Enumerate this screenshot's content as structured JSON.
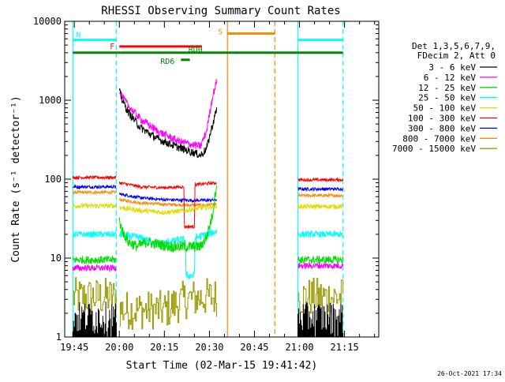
{
  "chart_data": {
    "type": "line",
    "title": "RHESSI Observing Summary Count Rates",
    "xlabel": "Start Time (02-Mar-15 19:41:42)",
    "ylabel": "Count Rate (s⁻¹ detector⁻¹)",
    "yscale": "log",
    "ylim": [
      1,
      10000
    ],
    "xlim_minutes": [
      -3.2,
      101.4
    ],
    "x_units": "minutes after 19:45",
    "x_tick_labels": [
      {
        "t": 0,
        "label": "19:45"
      },
      {
        "t": 15,
        "label": "20:00"
      },
      {
        "t": 30,
        "label": "20:15"
      },
      {
        "t": 45,
        "label": "20:30"
      },
      {
        "t": 60,
        "label": "20:45"
      },
      {
        "t": 75,
        "label": "21:00"
      },
      {
        "t": 90,
        "label": "21:15"
      }
    ],
    "y_tick_labels": [
      {
        "v": 1,
        "label": "1"
      },
      {
        "v": 10,
        "label": "10"
      },
      {
        "v": 100,
        "label": "100"
      },
      {
        "v": 1000,
        "label": "1000"
      },
      {
        "v": 10000,
        "label": "10000"
      }
    ],
    "legend_header": [
      "Det 1,3,5,6,7,9,",
      "FDecim 2, Att 0"
    ],
    "legend_position": "top-right outside plot",
    "series": [
      {
        "name": "3 - 6 keV",
        "color": "#000000",
        "segments": [
          {
            "t": [
              -0.5,
              14
            ],
            "v": [
              1,
              1
            ],
            "noise": 0.0
          },
          {
            "t": [
              15,
              16,
              18,
              22,
              28,
              35,
              40,
              42,
              44,
              46,
              47.5
            ],
            "v": [
              1300,
              1000,
              700,
              450,
              320,
              250,
              215,
              200,
              240,
              480,
              800
            ],
            "noise": 0.05
          },
          {
            "t": [
              74.5,
              89.5
            ],
            "v": [
              1,
              1
            ],
            "noise": 0.0
          }
        ]
      },
      {
        "name": "6 - 12 keV",
        "color": "#ff00ff",
        "segments": [
          {
            "t": [
              -0.5,
              14
            ],
            "v": [
              7.5,
              7.5
            ],
            "noise": 0.04
          },
          {
            "t": [
              15,
              16,
              18,
              22,
              28,
              35,
              40,
              42,
              44,
              46,
              47.5
            ],
            "v": [
              1350,
              1100,
              850,
              580,
              400,
              300,
              270,
              260,
              400,
              1100,
              1800
            ],
            "noise": 0.05
          },
          {
            "t": [
              74.5,
              89.5
            ],
            "v": [
              8,
              8
            ],
            "noise": 0.04
          }
        ]
      },
      {
        "name": "12 - 25 keV",
        "color": "#00dd00",
        "segments": [
          {
            "t": [
              -0.5,
              14
            ],
            "v": [
              9.5,
              9.5
            ],
            "noise": 0.05
          },
          {
            "t": [
              15,
              16,
              18,
              21,
              24,
              28,
              32,
              36,
              40,
              42,
              44,
              46,
              47.5
            ],
            "v": [
              30,
              22,
              16,
              14,
              16,
              15,
              14,
              14,
              14,
              14,
              18,
              35,
              95
            ],
            "noise": 0.07
          },
          {
            "t": [
              74.5,
              89.5
            ],
            "v": [
              9.5,
              9.5
            ],
            "noise": 0.05
          }
        ]
      },
      {
        "name": "25 - 50 keV",
        "color": "#00ffff",
        "segments": [
          {
            "t": [
              -0.5,
              14
            ],
            "v": [
              20,
              20
            ],
            "noise": 0.04
          },
          {
            "t": [
              15,
              22,
              28,
              35,
              37,
              37.2,
              40,
              40.2,
              44,
              47.5
            ],
            "v": [
              20,
              18,
              15,
              17,
              17,
              6,
              6,
              18,
              20,
              22
            ],
            "noise": 0.05
          },
          {
            "t": [
              74.5,
              89.5
            ],
            "v": [
              20,
              20
            ],
            "noise": 0.04
          }
        ]
      },
      {
        "name": "50 - 100 keV",
        "color": "#dddd00",
        "segments": [
          {
            "t": [
              -0.5,
              14
            ],
            "v": [
              46,
              46
            ],
            "noise": 0.03
          },
          {
            "t": [
              15,
              22,
              30,
              37,
              40,
              44,
              47.5
            ],
            "v": [
              44,
              40,
              38,
              40,
              42,
              44,
              46
            ],
            "noise": 0.03
          },
          {
            "t": [
              74.5,
              89.5
            ],
            "v": [
              45,
              45
            ],
            "noise": 0.03
          }
        ]
      },
      {
        "name": "100 - 300 keV",
        "color": "#ff0000",
        "segments": [
          {
            "t": [
              -0.5,
              14
            ],
            "v": [
              105,
              105
            ],
            "noise": 0.02
          },
          {
            "t": [
              15,
              22,
              30,
              36.5,
              36.7,
              40,
              40.2,
              44,
              47.5
            ],
            "v": [
              90,
              80,
              78,
              80,
              25,
              25,
              85,
              88,
              90
            ],
            "noise": 0.02
          },
          {
            "t": [
              74.5,
              89.5
            ],
            "v": [
              98,
              98
            ],
            "noise": 0.02
          }
        ]
      },
      {
        "name": "300 - 800 keV",
        "color": "#0000ff",
        "segments": [
          {
            "t": [
              -0.5,
              14
            ],
            "v": [
              80,
              80
            ],
            "noise": 0.02
          },
          {
            "t": [
              15,
              22,
              30,
              38,
              44,
              47.5
            ],
            "v": [
              65,
              58,
              55,
              54,
              54,
              55
            ],
            "noise": 0.02
          },
          {
            "t": [
              74.5,
              89.5
            ],
            "v": [
              75,
              75
            ],
            "noise": 0.02
          }
        ]
      },
      {
        "name": "800 - 7000 keV",
        "color": "#ff8800",
        "segments": [
          {
            "t": [
              -0.5,
              14
            ],
            "v": [
              68,
              68
            ],
            "noise": 0.02
          },
          {
            "t": [
              15,
              22,
              30,
              38,
              44,
              47.5
            ],
            "v": [
              55,
              50,
              48,
              47,
              47,
              48
            ],
            "noise": 0.02
          },
          {
            "t": [
              74.5,
              89.5
            ],
            "v": [
              62,
              62
            ],
            "noise": 0.02
          }
        ]
      },
      {
        "name": "7000 - 15000 keV",
        "color": "#999900",
        "segments": [
          {
            "t": [
              -0.5,
              14
            ],
            "v": [
              3.2,
              3.2
            ],
            "noise": 0.25
          },
          {
            "t": [
              15,
              30,
              37,
              44,
              47.5
            ],
            "v": [
              2.2,
              2.2,
              3,
              3.2,
              3.2
            ],
            "noise": 0.25
          },
          {
            "t": [
              74.5,
              89.5
            ],
            "v": [
              3.2,
              3.2
            ],
            "noise": 0.25
          }
        ]
      }
    ],
    "flag_bars": [
      {
        "label": "N",
        "color": "#00ffff",
        "segments": [
          [
            -0.5,
            14
          ],
          [
            74.5,
            89.5
          ]
        ],
        "level": 5800
      },
      {
        "label": "F",
        "color": "#ff0000",
        "segments": [
          [
            15,
            42.5
          ]
        ],
        "level": 4800
      },
      {
        "label": "S",
        "color": "#ff8800",
        "segments": [
          [
            51,
            66.8
          ]
        ],
        "level": 7000
      },
      {
        "label": "RD0",
        "color": "#008800",
        "segments": [
          [
            -0.5,
            89.5
          ]
        ],
        "level": 4000
      },
      {
        "label": "RD6",
        "color": "#008800",
        "segments": [
          [
            35.5,
            38.5
          ]
        ],
        "level": 3250
      }
    ],
    "vertical_lines": [
      {
        "t": -0.5,
        "color": "#00ffff",
        "style": "solid"
      },
      {
        "t": 14.0,
        "color": "#00ffff",
        "style": "dashed"
      },
      {
        "t": 51.0,
        "color": "#ff8800",
        "style": "solid"
      },
      {
        "t": 66.8,
        "color": "#ff8800",
        "style": "dashed"
      },
      {
        "t": 74.5,
        "color": "#00ffff",
        "style": "solid"
      },
      {
        "t": 89.5,
        "color": "#00ffff",
        "style": "dashed"
      }
    ],
    "footer_timestamp": "26-Oct-2021 17:34"
  }
}
